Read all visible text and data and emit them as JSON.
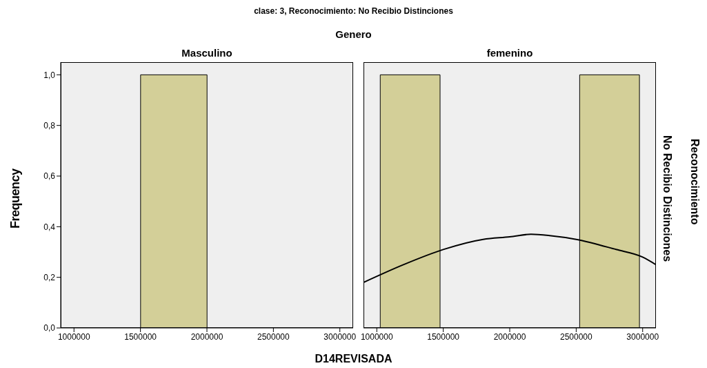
{
  "chart_data": [
    {
      "type": "histogram",
      "title": "Masculino",
      "annotations": [
        "clase: 3, Reconocimiento: No Recibio Distinciones",
        "Genero"
      ],
      "xlabel": "D14REVISADA",
      "ylabel": "Frequency",
      "bins": [
        1500000,
        2000000
      ],
      "values": [
        1
      ],
      "color": "#d3cf98",
      "xlim": [
        900000,
        3100000
      ],
      "xticks": [
        1000000,
        1500000,
        2000000,
        2500000,
        3000000
      ],
      "ylim": [
        0,
        1.05
      ],
      "yticks": [
        {
          "value": 0,
          "label": "0,0"
        },
        {
          "value": 0.2,
          "label": "0,2"
        },
        {
          "value": 0.4,
          "label": "0,4"
        },
        {
          "value": 0.6,
          "label": "0,6"
        },
        {
          "value": 0.8,
          "label": "0,8"
        },
        {
          "value": 1,
          "label": "1,0"
        }
      ]
    },
    {
      "type": "histogram",
      "title": "femenino",
      "annotations": [
        "No Recibio Distinciones",
        "Reconocimiento"
      ],
      "bins": [
        1000000,
        1500000,
        2000000,
        2500000,
        3000000
      ],
      "values": [
        1,
        0,
        0,
        1
      ],
      "color": "#d3cf98",
      "xlim": [
        900000,
        3100000
      ],
      "xticks": [
        1000000,
        1500000,
        2000000,
        2500000,
        3000000
      ],
      "ylim": [
        0,
        1.05
      ],
      "tick_labels": "x",
      "series": [
        {
          "type": "line",
          "color": "#000000",
          "x": [
            900000,
            1200000,
            1500000,
            1800000,
            2000000,
            2160000,
            2300000,
            2500000,
            2800000,
            3000000,
            3100000
          ],
          "values": [
            0.18,
            0.25,
            0.31,
            0.35,
            0.36,
            0.37,
            0.365,
            0.35,
            0.31,
            0.28,
            0.25
          ]
        }
      ]
    }
  ]
}
